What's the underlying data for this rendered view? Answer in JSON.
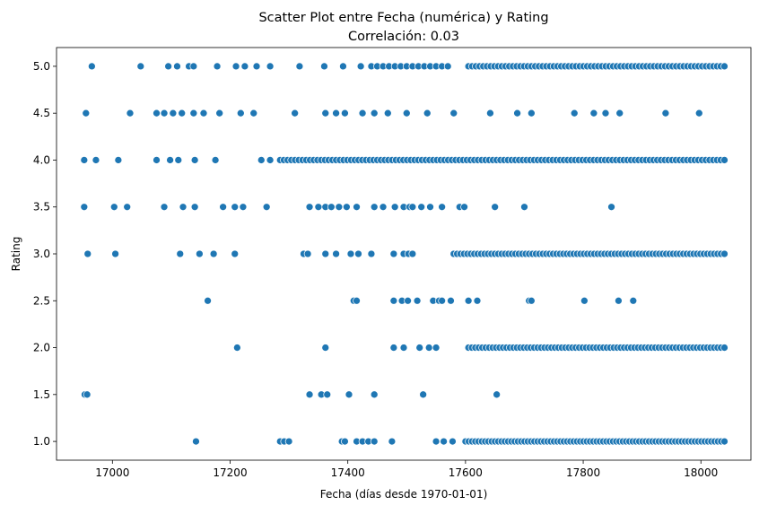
{
  "chart_data": {
    "type": "scatter",
    "title": "Scatter Plot entre Fecha (numérica) y Rating",
    "subtitle": "Correlación: 0.03",
    "xlabel": "Fecha (días desde 1970-01-01)",
    "ylabel": "Rating",
    "xlim": [
      16905,
      18085
    ],
    "ylim": [
      0.8,
      5.2
    ],
    "xticks": [
      17000,
      17200,
      17400,
      17600,
      17800,
      18000
    ],
    "yticks": [
      1.0,
      1.5,
      2.0,
      2.5,
      3.0,
      3.5,
      4.0,
      4.5,
      5.0
    ],
    "xtick_labels": [
      "17000",
      "17200",
      "17400",
      "17600",
      "17800",
      "18000"
    ],
    "ytick_labels": [
      "1.0",
      "1.5",
      "2.0",
      "2.5",
      "3.0",
      "3.5",
      "4.0",
      "4.5",
      "5.0"
    ],
    "grid": false,
    "legend": "none",
    "marker_color": "#1f77b4",
    "marker_edge_color": "#ffffff",
    "sparse_points": [
      {
        "x": 16965,
        "y": 5.0
      },
      {
        "x": 17048,
        "y": 5.0
      },
      {
        "x": 17095,
        "y": 5.0
      },
      {
        "x": 17110,
        "y": 5.0
      },
      {
        "x": 17130,
        "y": 5.0
      },
      {
        "x": 17138,
        "y": 5.0
      },
      {
        "x": 17178,
        "y": 5.0
      },
      {
        "x": 17210,
        "y": 5.0
      },
      {
        "x": 17225,
        "y": 5.0
      },
      {
        "x": 17245,
        "y": 5.0
      },
      {
        "x": 17268,
        "y": 5.0
      },
      {
        "x": 17318,
        "y": 5.0
      },
      {
        "x": 17360,
        "y": 5.0
      },
      {
        "x": 17392,
        "y": 5.0
      },
      {
        "x": 17422,
        "y": 5.0
      },
      {
        "x": 16955,
        "y": 4.5
      },
      {
        "x": 17030,
        "y": 4.5
      },
      {
        "x": 17075,
        "y": 4.5
      },
      {
        "x": 17088,
        "y": 4.5
      },
      {
        "x": 17103,
        "y": 4.5
      },
      {
        "x": 17118,
        "y": 4.5
      },
      {
        "x": 17138,
        "y": 4.5
      },
      {
        "x": 17155,
        "y": 4.5
      },
      {
        "x": 17182,
        "y": 4.5
      },
      {
        "x": 17218,
        "y": 4.5
      },
      {
        "x": 17240,
        "y": 4.5
      },
      {
        "x": 17310,
        "y": 4.5
      },
      {
        "x": 17362,
        "y": 4.5
      },
      {
        "x": 17380,
        "y": 4.5
      },
      {
        "x": 17395,
        "y": 4.5
      },
      {
        "x": 17425,
        "y": 4.5
      },
      {
        "x": 17445,
        "y": 4.5
      },
      {
        "x": 17468,
        "y": 4.5
      },
      {
        "x": 17500,
        "y": 4.5
      },
      {
        "x": 17535,
        "y": 4.5
      },
      {
        "x": 17580,
        "y": 4.5
      },
      {
        "x": 17642,
        "y": 4.5
      },
      {
        "x": 17688,
        "y": 4.5
      },
      {
        "x": 17712,
        "y": 4.5
      },
      {
        "x": 17785,
        "y": 4.5
      },
      {
        "x": 17818,
        "y": 4.5
      },
      {
        "x": 17838,
        "y": 4.5
      },
      {
        "x": 17862,
        "y": 4.5
      },
      {
        "x": 17940,
        "y": 4.5
      },
      {
        "x": 17997,
        "y": 4.5
      },
      {
        "x": 16952,
        "y": 4.0
      },
      {
        "x": 16972,
        "y": 4.0
      },
      {
        "x": 17010,
        "y": 4.0
      },
      {
        "x": 17075,
        "y": 4.0
      },
      {
        "x": 17098,
        "y": 4.0
      },
      {
        "x": 17112,
        "y": 4.0
      },
      {
        "x": 17140,
        "y": 4.0
      },
      {
        "x": 17175,
        "y": 4.0
      },
      {
        "x": 17253,
        "y": 4.0
      },
      {
        "x": 17268,
        "y": 4.0
      },
      {
        "x": 16952,
        "y": 3.5
      },
      {
        "x": 17003,
        "y": 3.5
      },
      {
        "x": 17025,
        "y": 3.5
      },
      {
        "x": 17088,
        "y": 3.5
      },
      {
        "x": 17120,
        "y": 3.5
      },
      {
        "x": 17140,
        "y": 3.5
      },
      {
        "x": 17188,
        "y": 3.5
      },
      {
        "x": 17208,
        "y": 3.5
      },
      {
        "x": 17222,
        "y": 3.5
      },
      {
        "x": 17262,
        "y": 3.5
      },
      {
        "x": 17335,
        "y": 3.5
      },
      {
        "x": 17350,
        "y": 3.5
      },
      {
        "x": 17362,
        "y": 3.5
      },
      {
        "x": 17372,
        "y": 3.5
      },
      {
        "x": 17385,
        "y": 3.5
      },
      {
        "x": 17398,
        "y": 3.5
      },
      {
        "x": 17415,
        "y": 3.5
      },
      {
        "x": 17445,
        "y": 3.5
      },
      {
        "x": 17460,
        "y": 3.5
      },
      {
        "x": 17480,
        "y": 3.5
      },
      {
        "x": 17495,
        "y": 3.5
      },
      {
        "x": 17505,
        "y": 3.5
      },
      {
        "x": 17510,
        "y": 3.5
      },
      {
        "x": 17525,
        "y": 3.5
      },
      {
        "x": 17540,
        "y": 3.5
      },
      {
        "x": 17560,
        "y": 3.5
      },
      {
        "x": 17590,
        "y": 3.5
      },
      {
        "x": 17598,
        "y": 3.5
      },
      {
        "x": 17650,
        "y": 3.5
      },
      {
        "x": 17700,
        "y": 3.5
      },
      {
        "x": 17848,
        "y": 3.5
      },
      {
        "x": 16958,
        "y": 3.0
      },
      {
        "x": 17005,
        "y": 3.0
      },
      {
        "x": 17115,
        "y": 3.0
      },
      {
        "x": 17148,
        "y": 3.0
      },
      {
        "x": 17172,
        "y": 3.0
      },
      {
        "x": 17208,
        "y": 3.0
      },
      {
        "x": 17325,
        "y": 3.0
      },
      {
        "x": 17332,
        "y": 3.0
      },
      {
        "x": 17362,
        "y": 3.0
      },
      {
        "x": 17380,
        "y": 3.0
      },
      {
        "x": 17405,
        "y": 3.0
      },
      {
        "x": 17418,
        "y": 3.0
      },
      {
        "x": 17440,
        "y": 3.0
      },
      {
        "x": 17478,
        "y": 3.0
      },
      {
        "x": 17495,
        "y": 3.0
      },
      {
        "x": 17503,
        "y": 3.0
      },
      {
        "x": 17510,
        "y": 3.0
      },
      {
        "x": 17162,
        "y": 2.5
      },
      {
        "x": 17410,
        "y": 2.5
      },
      {
        "x": 17415,
        "y": 2.5
      },
      {
        "x": 17478,
        "y": 2.5
      },
      {
        "x": 17492,
        "y": 2.5
      },
      {
        "x": 17502,
        "y": 2.5
      },
      {
        "x": 17518,
        "y": 2.5
      },
      {
        "x": 17545,
        "y": 2.5
      },
      {
        "x": 17555,
        "y": 2.5
      },
      {
        "x": 17560,
        "y": 2.5
      },
      {
        "x": 17575,
        "y": 2.5
      },
      {
        "x": 17605,
        "y": 2.5
      },
      {
        "x": 17620,
        "y": 2.5
      },
      {
        "x": 17708,
        "y": 2.5
      },
      {
        "x": 17712,
        "y": 2.5
      },
      {
        "x": 17802,
        "y": 2.5
      },
      {
        "x": 17860,
        "y": 2.5
      },
      {
        "x": 17885,
        "y": 2.5
      },
      {
        "x": 17212,
        "y": 2.0
      },
      {
        "x": 17362,
        "y": 2.0
      },
      {
        "x": 17478,
        "y": 2.0
      },
      {
        "x": 17495,
        "y": 2.0
      },
      {
        "x": 17522,
        "y": 2.0
      },
      {
        "x": 17538,
        "y": 2.0
      },
      {
        "x": 17550,
        "y": 2.0
      },
      {
        "x": 16953,
        "y": 1.5
      },
      {
        "x": 16957,
        "y": 1.5
      },
      {
        "x": 17335,
        "y": 1.5
      },
      {
        "x": 17355,
        "y": 1.5
      },
      {
        "x": 17365,
        "y": 1.5
      },
      {
        "x": 17402,
        "y": 1.5
      },
      {
        "x": 17445,
        "y": 1.5
      },
      {
        "x": 17528,
        "y": 1.5
      },
      {
        "x": 17653,
        "y": 1.5
      },
      {
        "x": 17142,
        "y": 1.0
      },
      {
        "x": 17285,
        "y": 1.0
      },
      {
        "x": 17292,
        "y": 1.0
      },
      {
        "x": 17300,
        "y": 1.0
      },
      {
        "x": 17390,
        "y": 1.0
      },
      {
        "x": 17395,
        "y": 1.0
      },
      {
        "x": 17415,
        "y": 1.0
      },
      {
        "x": 17425,
        "y": 1.0
      },
      {
        "x": 17435,
        "y": 1.0
      },
      {
        "x": 17445,
        "y": 1.0
      },
      {
        "x": 17475,
        "y": 1.0
      },
      {
        "x": 17550,
        "y": 1.0
      },
      {
        "x": 17563,
        "y": 1.0
      },
      {
        "x": 17578,
        "y": 1.0
      }
    ],
    "dense_runs": [
      {
        "y": 5.0,
        "x_start": 17440,
        "x_end": 17570,
        "count": 14
      },
      {
        "y": 5.0,
        "x_start": 17605,
        "x_end": 18040,
        "count": 70
      },
      {
        "y": 4.0,
        "x_start": 17285,
        "x_end": 18040,
        "count": 120
      },
      {
        "y": 3.0,
        "x_start": 17580,
        "x_end": 18040,
        "count": 80
      },
      {
        "y": 2.0,
        "x_start": 17605,
        "x_end": 18040,
        "count": 75
      },
      {
        "y": 1.0,
        "x_start": 17600,
        "x_end": 18040,
        "count": 80
      }
    ]
  }
}
